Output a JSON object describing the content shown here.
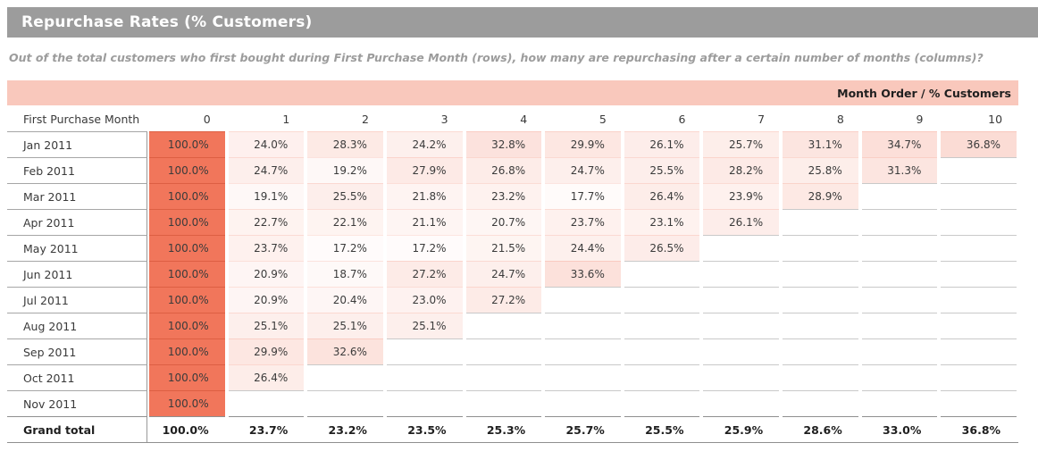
{
  "header": {
    "title": "Repurchase Rates (% Customers)"
  },
  "subtitle": "Out of the total customers who first bought during First Purchase Month (rows), how many are repurchasing after a certain number of months (columns)?",
  "table": {
    "corner_label": "Month Order / % Customers",
    "row_header_label": "First Purchase Month",
    "columns": [
      "0",
      "1",
      "2",
      "3",
      "4",
      "5",
      "6",
      "7",
      "8",
      "9",
      "10"
    ],
    "rows": [
      {
        "label": "Jan 2011",
        "values": [
          "100.0%",
          "24.0%",
          "28.3%",
          "24.2%",
          "32.8%",
          "29.9%",
          "26.1%",
          "25.7%",
          "31.1%",
          "34.7%",
          "36.8%"
        ]
      },
      {
        "label": "Feb 2011",
        "values": [
          "100.0%",
          "24.7%",
          "19.2%",
          "27.9%",
          "26.8%",
          "24.7%",
          "25.5%",
          "28.2%",
          "25.8%",
          "31.3%",
          ""
        ]
      },
      {
        "label": "Mar 2011",
        "values": [
          "100.0%",
          "19.1%",
          "25.5%",
          "21.8%",
          "23.2%",
          "17.7%",
          "26.4%",
          "23.9%",
          "28.9%",
          "",
          ""
        ]
      },
      {
        "label": "Apr 2011",
        "values": [
          "100.0%",
          "22.7%",
          "22.1%",
          "21.1%",
          "20.7%",
          "23.7%",
          "23.1%",
          "26.1%",
          "",
          "",
          ""
        ]
      },
      {
        "label": "May 2011",
        "values": [
          "100.0%",
          "23.7%",
          "17.2%",
          "17.2%",
          "21.5%",
          "24.4%",
          "26.5%",
          "",
          "",
          "",
          ""
        ]
      },
      {
        "label": "Jun 2011",
        "values": [
          "100.0%",
          "20.9%",
          "18.7%",
          "27.2%",
          "24.7%",
          "33.6%",
          "",
          "",
          "",
          "",
          ""
        ]
      },
      {
        "label": "Jul 2011",
        "values": [
          "100.0%",
          "20.9%",
          "20.4%",
          "23.0%",
          "27.2%",
          "",
          "",
          "",
          "",
          "",
          ""
        ]
      },
      {
        "label": "Aug 2011",
        "values": [
          "100.0%",
          "25.1%",
          "25.1%",
          "25.1%",
          "",
          "",
          "",
          "",
          "",
          "",
          ""
        ]
      },
      {
        "label": "Sep 2011",
        "values": [
          "100.0%",
          "29.9%",
          "32.6%",
          "",
          "",
          "",
          "",
          "",
          "",
          "",
          ""
        ]
      },
      {
        "label": "Oct 2011",
        "values": [
          "100.0%",
          "26.4%",
          "",
          "",
          "",
          "",
          "",
          "",
          "",
          "",
          ""
        ]
      },
      {
        "label": "Nov 2011",
        "values": [
          "100.0%",
          "",
          "",
          "",
          "",
          "",
          "",
          "",
          "",
          "",
          ""
        ]
      }
    ],
    "grand_total": {
      "label": "Grand total",
      "values": [
        "100.0%",
        "23.7%",
        "23.2%",
        "23.5%",
        "25.3%",
        "25.7%",
        "25.5%",
        "25.9%",
        "28.6%",
        "33.0%",
        "36.8%"
      ]
    }
  },
  "colors": {
    "titlebar_gray": "#9c9c9c",
    "band_pink": "#f9c8bc",
    "accent_coral": "#f1765b",
    "coral_border": "#dd5f43",
    "empty_cell_border": "#c9c9c9"
  },
  "chart_data": {
    "type": "heatmap",
    "title": "Repurchase Rates (% Customers)",
    "xlabel": "Month Order",
    "ylabel": "First Purchase Month",
    "x": [
      0,
      1,
      2,
      3,
      4,
      5,
      6,
      7,
      8,
      9,
      10
    ],
    "y": [
      "Jan 2011",
      "Feb 2011",
      "Mar 2011",
      "Apr 2011",
      "May 2011",
      "Jun 2011",
      "Jul 2011",
      "Aug 2011",
      "Sep 2011",
      "Oct 2011",
      "Nov 2011"
    ],
    "values_percent": [
      [
        100.0,
        24.0,
        28.3,
        24.2,
        32.8,
        29.9,
        26.1,
        25.7,
        31.1,
        34.7,
        36.8
      ],
      [
        100.0,
        24.7,
        19.2,
        27.9,
        26.8,
        24.7,
        25.5,
        28.2,
        25.8,
        31.3,
        null
      ],
      [
        100.0,
        19.1,
        25.5,
        21.8,
        23.2,
        17.7,
        26.4,
        23.9,
        28.9,
        null,
        null
      ],
      [
        100.0,
        22.7,
        22.1,
        21.1,
        20.7,
        23.7,
        23.1,
        26.1,
        null,
        null,
        null
      ],
      [
        100.0,
        23.7,
        17.2,
        17.2,
        21.5,
        24.4,
        26.5,
        null,
        null,
        null,
        null
      ],
      [
        100.0,
        20.9,
        18.7,
        27.2,
        24.7,
        33.6,
        null,
        null,
        null,
        null,
        null
      ],
      [
        100.0,
        20.9,
        20.4,
        23.0,
        27.2,
        null,
        null,
        null,
        null,
        null,
        null
      ],
      [
        100.0,
        25.1,
        25.1,
        25.1,
        null,
        null,
        null,
        null,
        null,
        null,
        null
      ],
      [
        100.0,
        29.9,
        32.6,
        null,
        null,
        null,
        null,
        null,
        null,
        null,
        null
      ],
      [
        100.0,
        26.4,
        null,
        null,
        null,
        null,
        null,
        null,
        null,
        null,
        null
      ],
      [
        100.0,
        null,
        null,
        null,
        null,
        null,
        null,
        null,
        null,
        null,
        null
      ]
    ],
    "grand_total_percent": [
      100.0,
      23.7,
      23.2,
      23.5,
      25.3,
      25.7,
      25.5,
      25.9,
      28.6,
      33.0,
      36.8
    ],
    "color_scale": "white-to-coral, 100% = solid coral"
  }
}
